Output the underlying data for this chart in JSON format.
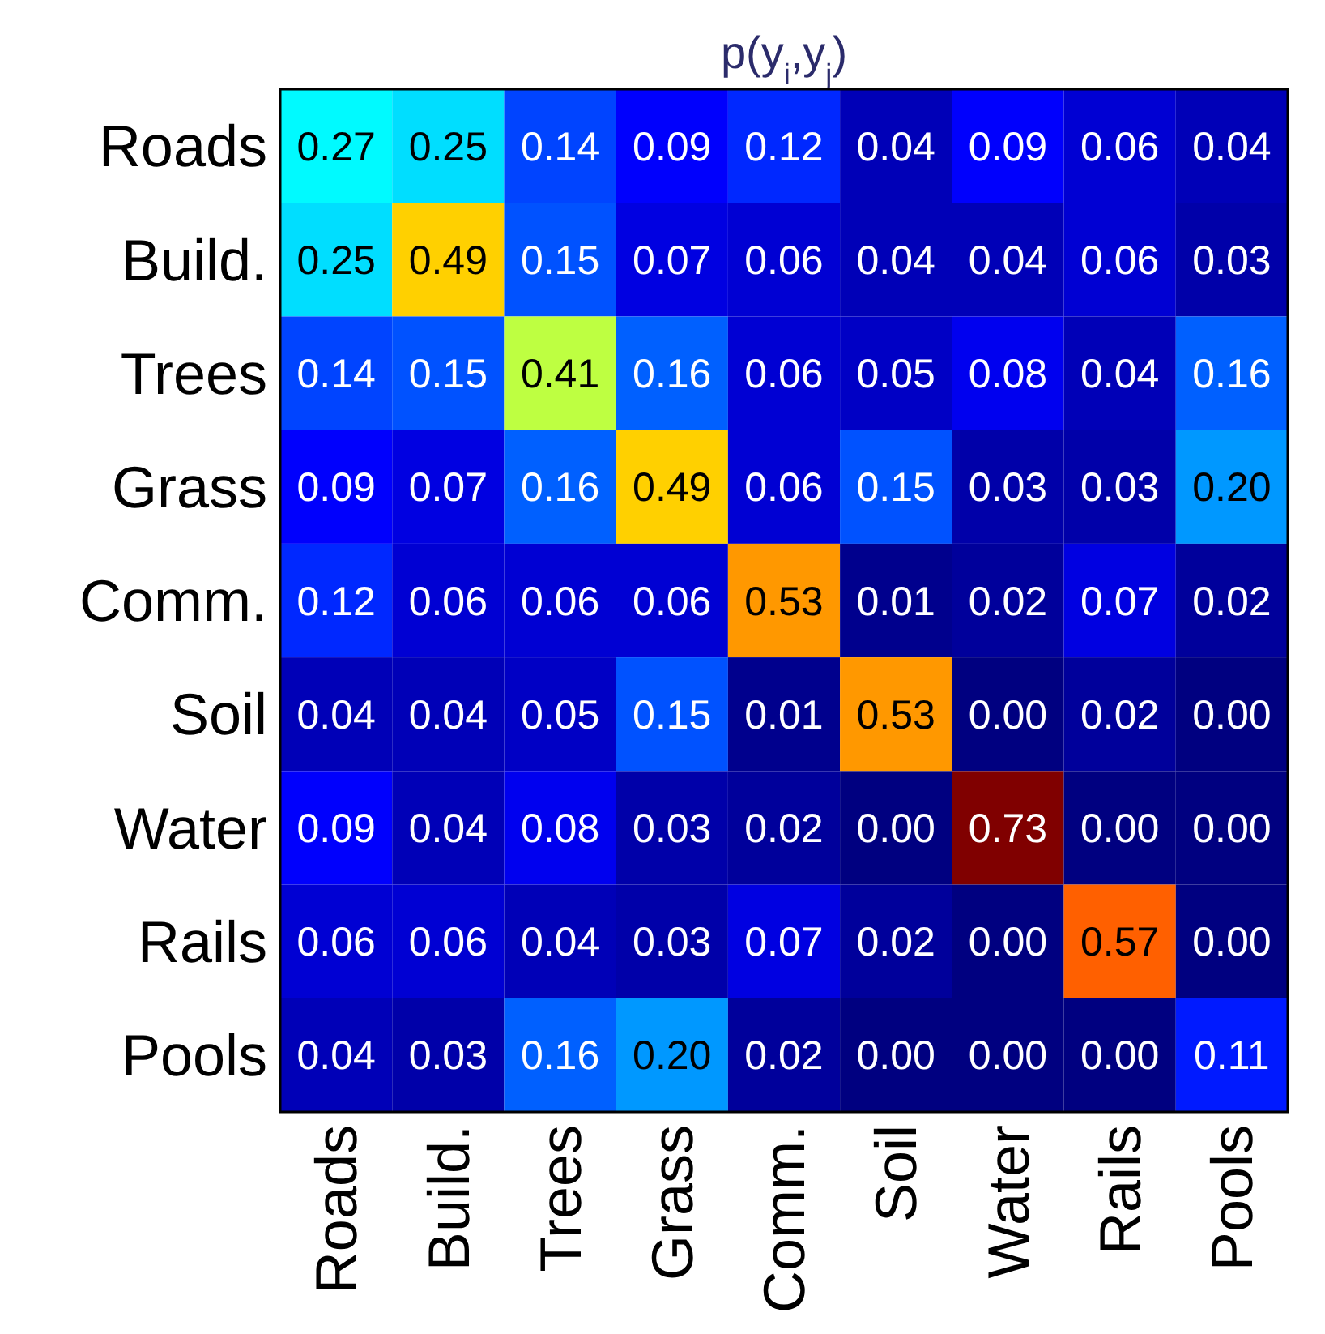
{
  "chart_data": {
    "type": "heatmap",
    "title": "p(y$_{i}$,y$_{j}$)",
    "categories": [
      "Roads",
      "Build.",
      "Trees",
      "Grass",
      "Comm.",
      "Soil",
      "Water",
      "Rails",
      "Pools"
    ],
    "y_categories": [
      "Roads",
      "Build.",
      "Trees",
      "Grass",
      "Comm.",
      "Soil",
      "Water",
      "Rails",
      "Pools"
    ],
    "cells": [
      [
        0.27,
        0.25,
        0.14,
        0.09,
        0.12,
        0.04,
        0.09,
        0.06,
        0.04
      ],
      [
        0.25,
        0.49,
        0.15,
        0.07,
        0.06,
        0.04,
        0.04,
        0.06,
        0.03
      ],
      [
        0.14,
        0.15,
        0.41,
        0.16,
        0.06,
        0.05,
        0.08,
        0.04,
        0.16
      ],
      [
        0.09,
        0.07,
        0.16,
        0.49,
        0.06,
        0.15,
        0.03,
        0.03,
        0.2
      ],
      [
        0.12,
        0.06,
        0.06,
        0.06,
        0.53,
        0.01,
        0.02,
        0.07,
        0.02
      ],
      [
        0.04,
        0.04,
        0.05,
        0.15,
        0.01,
        0.53,
        0.0,
        0.02,
        0.0
      ],
      [
        0.09,
        0.04,
        0.08,
        0.03,
        0.02,
        0.0,
        0.73,
        0.0,
        0.0
      ],
      [
        0.06,
        0.06,
        0.04,
        0.03,
        0.07,
        0.02,
        0.0,
        0.57,
        0.0
      ],
      [
        0.04,
        0.03,
        0.16,
        0.2,
        0.02,
        0.0,
        0.0,
        0.0,
        0.11
      ]
    ],
    "cell_labels": [
      [
        "0.27",
        "0.25",
        "0.14",
        "0.09",
        "0.12",
        "0.04",
        "0.09",
        "0.06",
        "0.04"
      ],
      [
        "0.25",
        "0.49",
        "0.15",
        "0.07",
        "0.06",
        "0.04",
        "0.04",
        "0.06",
        "0.03"
      ],
      [
        "0.14",
        "0.15",
        "0.41",
        "0.16",
        "0.06",
        "0.05",
        "0.08",
        "0.04",
        "0.16"
      ],
      [
        "0.09",
        "0.07",
        "0.16",
        "0.49",
        "0.06",
        "0.15",
        "0.03",
        "0.03",
        "0.20"
      ],
      [
        "0.12",
        "0.06",
        "0.06",
        "0.06",
        "0.53",
        "0.01",
        "0.02",
        "0.07",
        "0.02"
      ],
      [
        "0.04",
        "0.04",
        "0.05",
        "0.15",
        "0.01",
        "0.53",
        "0.00",
        "0.02",
        "0.00"
      ],
      [
        "0.09",
        "0.04",
        "0.08",
        "0.03",
        "0.02",
        "0.00",
        "0.73",
        "0.00",
        "0.00"
      ],
      [
        "0.06",
        "0.06",
        "0.04",
        "0.03",
        "0.07",
        "0.02",
        "0.00",
        "0.57",
        "0.00"
      ],
      [
        "0.04",
        "0.03",
        "0.16",
        "0.20",
        "0.02",
        "0.00",
        "0.00",
        "0.00",
        "0.11"
      ]
    ]
  }
}
